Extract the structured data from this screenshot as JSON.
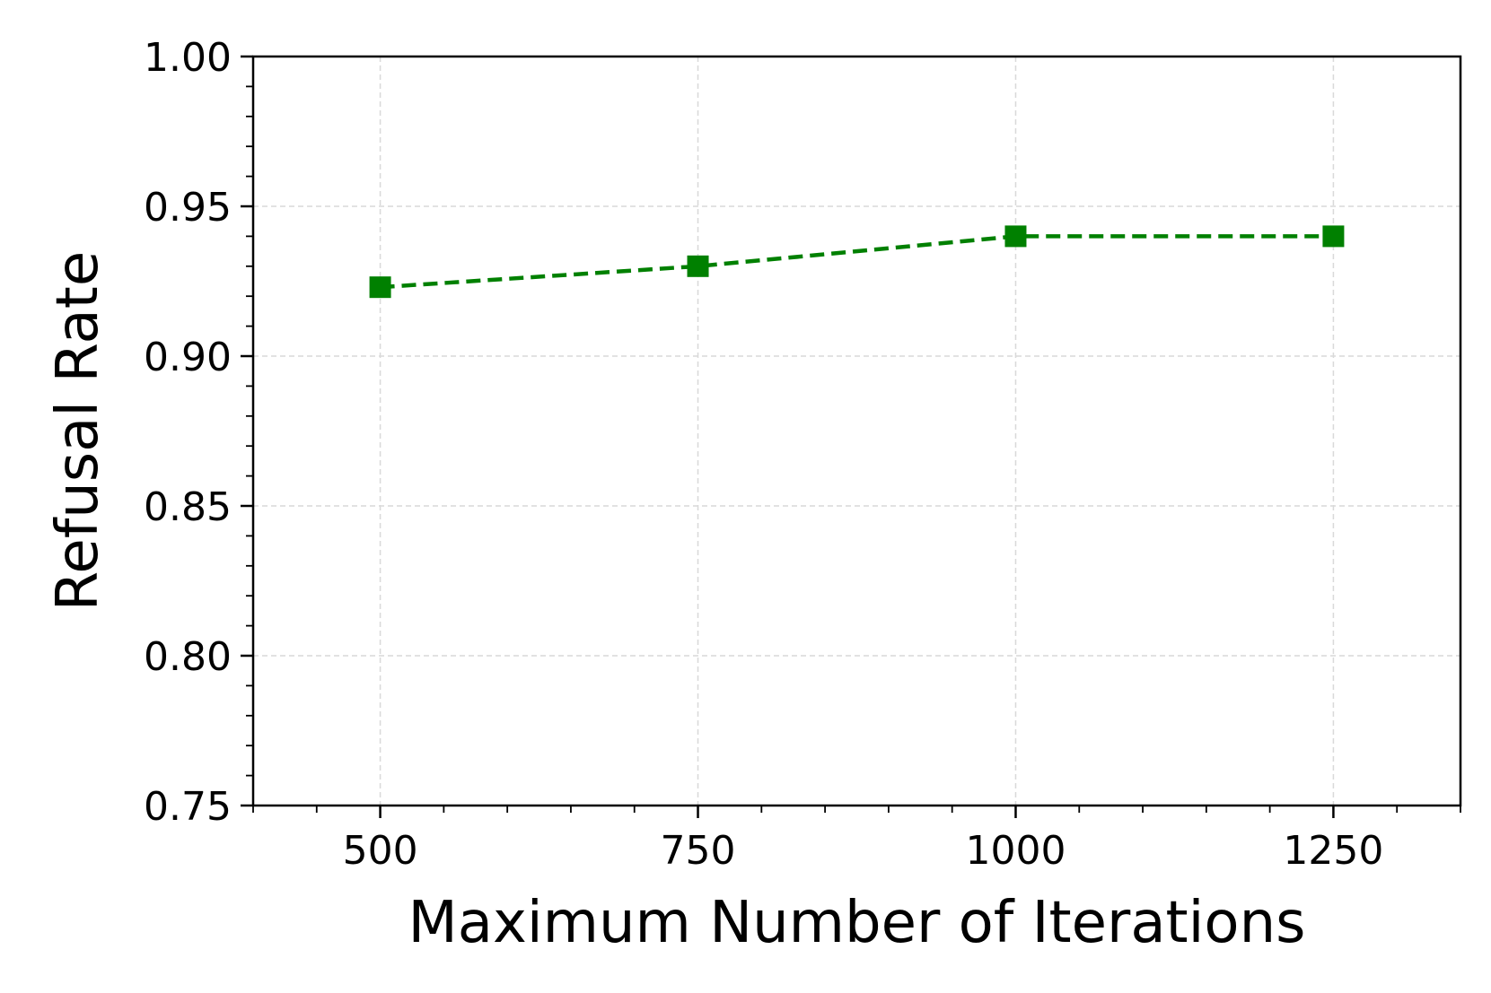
{
  "chart_data": {
    "type": "line",
    "title": "",
    "xlabel": "Maximum Number of Iterations",
    "ylabel": "Refusal Rate",
    "x": [
      500,
      750,
      1000,
      1250
    ],
    "series": [
      {
        "values": [
          0.923,
          0.93,
          0.94,
          0.94
        ],
        "color": "#008000",
        "linestyle": "dashed",
        "marker": "square"
      }
    ],
    "xlim": [
      400,
      1350
    ],
    "ylim": [
      0.75,
      1.0
    ],
    "xticks": [
      500,
      750,
      1000,
      1250
    ],
    "xtick_labels": [
      "500",
      "750",
      "1000",
      "1250"
    ],
    "yticks": [
      0.75,
      0.8,
      0.85,
      0.9,
      0.95,
      1.0
    ],
    "ytick_labels": [
      "0.75",
      "0.80",
      "0.85",
      "0.90",
      "0.95",
      "1.00"
    ],
    "grid": true,
    "grid_color": "#d9d9d9",
    "legend": "none"
  }
}
